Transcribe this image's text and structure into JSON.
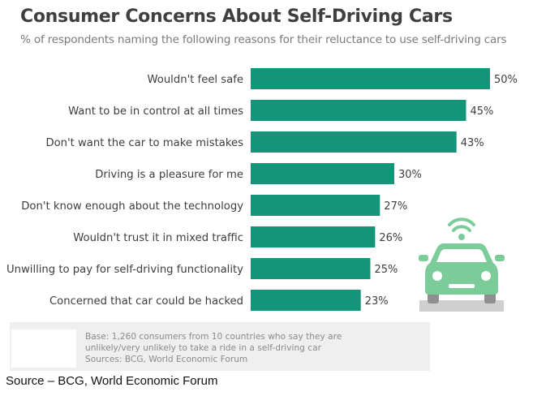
{
  "header": {
    "title": "Consumer Concerns About Self-Driving Cars",
    "subtitle": "% of respondents naming the following reasons for their reluctance to use self-driving cars"
  },
  "chart_data": {
    "type": "bar",
    "orientation": "horizontal",
    "categories": [
      "Wouldn't feel safe",
      "Want to be in control at all times",
      "Don't want the car to make mistakes",
      "Driving is a pleasure for me",
      "Don't know enough about the technology",
      "Wouldn't trust it in mixed traffic",
      "Unwilling to pay for self-driving functionality",
      "Concerned that car could be hacked"
    ],
    "values": [
      50,
      45,
      43,
      30,
      27,
      26,
      25,
      23
    ],
    "value_suffix": "%",
    "bar_color": "#14957a",
    "grid": false,
    "legend": "none",
    "xlim": [
      0,
      50
    ]
  },
  "footer": {
    "base_line1": "Base: 1,260 consumers from 10 countries who say they are",
    "base_line2": "unlikely/very unlikely to take a ride in a self-driving car",
    "sources": "Sources: BCG, World Economic Forum"
  },
  "source_caption": "Source – BCG, World Economic Forum",
  "illustration": {
    "icon": "self-driving-car-icon",
    "color": "#7ccc9a"
  }
}
